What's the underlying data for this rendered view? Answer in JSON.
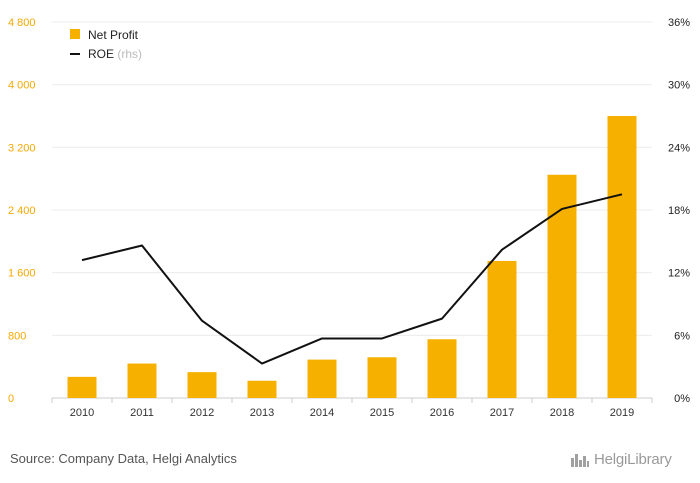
{
  "chart_data": {
    "type": "bar",
    "categories": [
      "2010",
      "2011",
      "2012",
      "2013",
      "2014",
      "2015",
      "2016",
      "2017",
      "2018",
      "2019"
    ],
    "series": [
      {
        "name": "Net Profit",
        "axis": "left",
        "type": "bar",
        "color": "#f5b000",
        "values": [
          270,
          440,
          330,
          220,
          490,
          520,
          750,
          1750,
          2850,
          3600
        ]
      },
      {
        "name": "ROE",
        "axis": "right",
        "type": "line",
        "color": "#111111",
        "values": [
          13.2,
          14.6,
          7.4,
          3.3,
          5.7,
          5.7,
          7.6,
          14.2,
          18.1,
          19.5
        ]
      }
    ],
    "y_left": {
      "ticks": [
        0,
        800,
        1600,
        2400,
        3200,
        4000,
        4800
      ],
      "tick_labels": [
        "0",
        "800",
        "1 600",
        "2 400",
        "3 200",
        "4 000",
        "4 800"
      ],
      "ylim": [
        0,
        4800
      ],
      "color": "#f5a800"
    },
    "y_right": {
      "ticks": [
        0,
        6,
        12,
        18,
        24,
        30,
        36
      ],
      "tick_labels": [
        "0%",
        "6%",
        "12%",
        "18%",
        "24%",
        "30%",
        "36%"
      ],
      "ylim": [
        0,
        36
      ]
    },
    "legend": {
      "placement": "top-left",
      "items": [
        {
          "label": "Net Profit",
          "suffix": "",
          "marker": "square"
        },
        {
          "label": "ROE",
          "suffix": "(rhs)",
          "marker": "line"
        }
      ]
    },
    "grid": true
  },
  "footer": {
    "source": "Source: Company Data, Helgi Analytics",
    "logo": "HelgiLibrary",
    "logo_icon": "city-skyline-icon"
  }
}
